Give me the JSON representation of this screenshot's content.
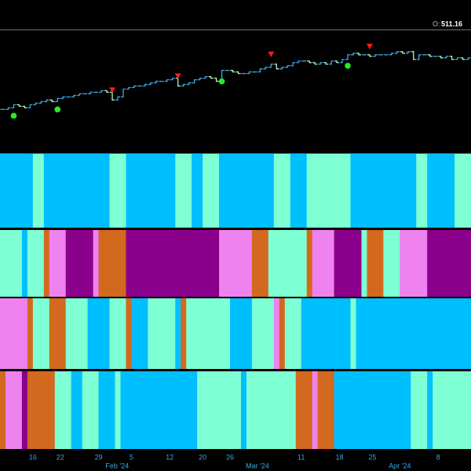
{
  "chart_data": {
    "type": "ohlc",
    "ohlc_label": "O:",
    "open": 511.16,
    "ylim": [
      443,
      522
    ],
    "close": [
      471,
      472,
      474,
      473,
      472,
      474,
      475,
      476,
      477,
      476,
      478,
      479,
      479,
      480,
      481,
      481,
      482,
      482,
      483,
      482,
      477,
      479,
      484,
      485,
      486,
      486,
      487,
      488,
      489,
      489,
      490,
      491,
      486,
      487,
      488,
      490,
      491,
      492,
      491,
      489,
      496,
      496,
      495,
      494,
      494,
      495,
      495,
      497,
      498,
      500,
      497,
      498,
      499,
      501,
      502,
      502,
      501,
      500,
      501,
      500,
      502,
      501,
      503,
      506,
      507,
      506,
      506,
      505,
      506,
      506,
      506,
      507,
      508,
      507,
      508,
      503,
      506,
      506,
      505,
      505,
      504,
      505,
      503,
      504,
      503,
      504
    ],
    "up_color": "#3aa8e8",
    "down_color": "#b4f5c4",
    "sell_signals": [
      20,
      32,
      49,
      67
    ],
    "sell_color": "#ff1a1a",
    "buy_signals": [
      2,
      10,
      40,
      63
    ],
    "buy_color": "#22ee22",
    "xticks": [
      {
        "value": 6,
        "label": "16"
      },
      {
        "value": 11,
        "label": "22"
      },
      {
        "value": 18,
        "label": "29"
      },
      {
        "value": 24,
        "label": "5"
      },
      {
        "value": 31,
        "label": "12"
      },
      {
        "value": 37,
        "label": "20"
      },
      {
        "value": 42,
        "label": "26"
      },
      {
        "value": 55,
        "label": "11"
      },
      {
        "value": 62,
        "label": "18"
      },
      {
        "value": 68,
        "label": "25"
      },
      {
        "value": 80,
        "label": "8"
      }
    ],
    "month_ticks": [
      {
        "value": 21.4,
        "label": "Feb '24"
      },
      {
        "value": 47,
        "label": "Mar '24"
      },
      {
        "value": 73,
        "label": "Apr '24"
      }
    ],
    "regime_panels": [
      {
        "segments": [
          {
            "length": 6,
            "color": "#00bfff"
          },
          {
            "length": 2,
            "color": "#7fffd4"
          },
          {
            "length": 12,
            "color": "#00bfff"
          },
          {
            "length": 3,
            "color": "#7fffd4"
          },
          {
            "length": 9,
            "color": "#00bfff"
          },
          {
            "length": 3,
            "color": "#7fffd4"
          },
          {
            "length": 2,
            "color": "#00bfff"
          },
          {
            "length": 3,
            "color": "#7fffd4"
          },
          {
            "length": 10,
            "color": "#00bfff"
          },
          {
            "length": 3,
            "color": "#7fffd4"
          },
          {
            "length": 3,
            "color": "#00bfff"
          },
          {
            "length": 8,
            "color": "#7fffd4"
          },
          {
            "length": 12,
            "color": "#00bfff"
          },
          {
            "length": 2,
            "color": "#7fffd4"
          },
          {
            "length": 5,
            "color": "#00bfff"
          },
          {
            "length": 3,
            "color": "#7fffd4"
          }
        ]
      },
      {
        "segments": [
          {
            "length": 4,
            "color": "#7fffd4"
          },
          {
            "length": 1,
            "color": "#00bfff"
          },
          {
            "length": 3,
            "color": "#7fffd4"
          },
          {
            "length": 1,
            "color": "#d2691e"
          },
          {
            "length": 3,
            "color": "#ee82ee"
          },
          {
            "length": 5,
            "color": "#8b008b"
          },
          {
            "length": 1,
            "color": "#ee82ee"
          },
          {
            "length": 5,
            "color": "#d2691e"
          },
          {
            "length": 17,
            "color": "#8b008b"
          },
          {
            "length": 6,
            "color": "#ee82ee"
          },
          {
            "length": 3,
            "color": "#d2691e"
          },
          {
            "length": 7,
            "color": "#7fffd4"
          },
          {
            "length": 1,
            "color": "#d2691e"
          },
          {
            "length": 4,
            "color": "#ee82ee"
          },
          {
            "length": 5,
            "color": "#8b008b"
          },
          {
            "length": 1,
            "color": "#7fffd4"
          },
          {
            "length": 3,
            "color": "#d2691e"
          },
          {
            "length": 3,
            "color": "#7fffd4"
          },
          {
            "length": 5,
            "color": "#ee82ee"
          },
          {
            "length": 8,
            "color": "#8b008b"
          }
        ]
      },
      {
        "segments": [
          {
            "length": 5,
            "color": "#ee82ee"
          },
          {
            "length": 1,
            "color": "#d2691e"
          },
          {
            "length": 3,
            "color": "#7fffd4"
          },
          {
            "length": 3,
            "color": "#d2691e"
          },
          {
            "length": 4,
            "color": "#7fffd4"
          },
          {
            "length": 4,
            "color": "#00bfff"
          },
          {
            "length": 3,
            "color": "#7fffd4"
          },
          {
            "length": 1,
            "color": "#d2691e"
          },
          {
            "length": 3,
            "color": "#00bfff"
          },
          {
            "length": 5,
            "color": "#7fffd4"
          },
          {
            "length": 1,
            "color": "#00bfff"
          },
          {
            "length": 1,
            "color": "#d2691e"
          },
          {
            "length": 8,
            "color": "#7fffd4"
          },
          {
            "length": 4,
            "color": "#00bfff"
          },
          {
            "length": 4,
            "color": "#7fffd4"
          },
          {
            "length": 1,
            "color": "#ee82ee"
          },
          {
            "length": 1,
            "color": "#d2691e"
          },
          {
            "length": 3,
            "color": "#7fffd4"
          },
          {
            "length": 9,
            "color": "#00bfff"
          },
          {
            "length": 1,
            "color": "#7fffd4"
          },
          {
            "length": 21,
            "color": "#00bfff"
          }
        ]
      },
      {
        "segments": [
          {
            "length": 1,
            "color": "#d2691e"
          },
          {
            "length": 3,
            "color": "#ee82ee"
          },
          {
            "length": 1,
            "color": "#8b008b"
          },
          {
            "length": 5,
            "color": "#d2691e"
          },
          {
            "length": 3,
            "color": "#7fffd4"
          },
          {
            "length": 2,
            "color": "#00bfff"
          },
          {
            "length": 3,
            "color": "#7fffd4"
          },
          {
            "length": 3,
            "color": "#00bfff"
          },
          {
            "length": 1,
            "color": "#7fffd4"
          },
          {
            "length": 14,
            "color": "#00bfff"
          },
          {
            "length": 8,
            "color": "#7fffd4"
          },
          {
            "length": 1,
            "color": "#00bfff"
          },
          {
            "length": 9,
            "color": "#7fffd4"
          },
          {
            "length": 3,
            "color": "#d2691e"
          },
          {
            "length": 1,
            "color": "#ee82ee"
          },
          {
            "length": 3,
            "color": "#d2691e"
          },
          {
            "length": 14,
            "color": "#00bfff"
          },
          {
            "length": 3,
            "color": "#7fffd4"
          },
          {
            "length": 1,
            "color": "#00bfff"
          },
          {
            "length": 7,
            "color": "#7fffd4"
          }
        ]
      }
    ]
  }
}
